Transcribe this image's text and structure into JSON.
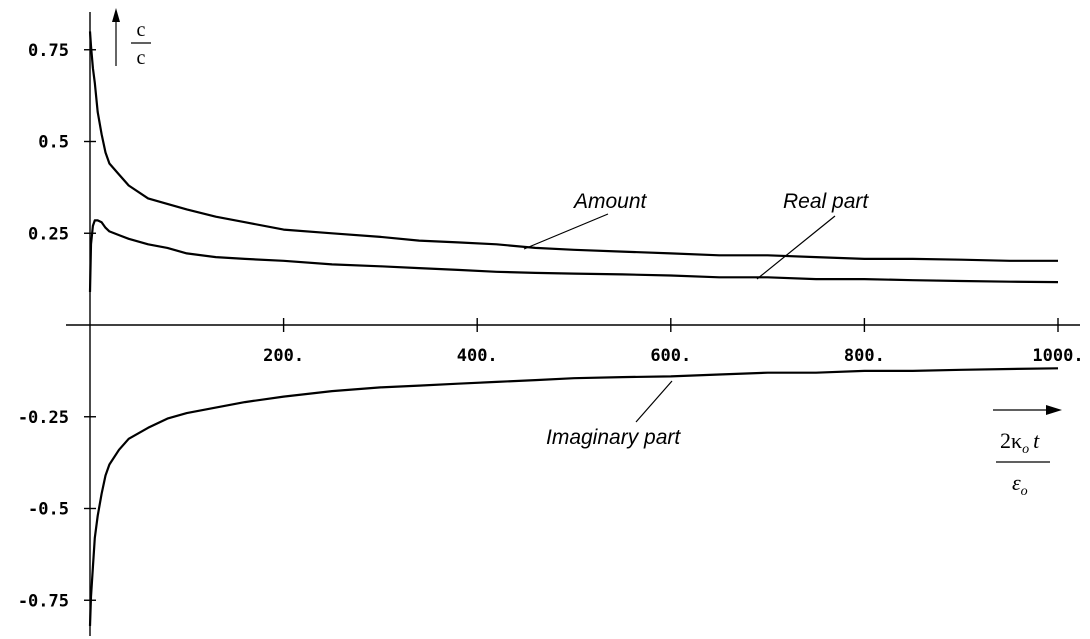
{
  "chart_data": {
    "type": "line",
    "xlim": [
      0,
      1000
    ],
    "ylim": [
      -0.85,
      0.85
    ],
    "x_ticks": [
      {
        "value": 200,
        "label": "200."
      },
      {
        "value": 400,
        "label": "400."
      },
      {
        "value": 600,
        "label": "600."
      },
      {
        "value": 800,
        "label": "800."
      },
      {
        "value": 1000,
        "label": "1000."
      }
    ],
    "y_ticks": [
      {
        "value": 0.75,
        "label": "0.75"
      },
      {
        "value": 0.5,
        "label": "0.5"
      },
      {
        "value": 0.25,
        "label": "0.25"
      },
      {
        "value": -0.25,
        "label": "-0.25"
      },
      {
        "value": -0.5,
        "label": "-0.5"
      },
      {
        "value": -0.75,
        "label": "-0.75"
      }
    ],
    "ylabel": {
      "numerator": "c",
      "denominator": "c"
    },
    "xlabel": {
      "numerator": "2κ",
      "numerator_sub": "o",
      "numerator_var": "t",
      "denominator": "ε",
      "denominator_sub": "o"
    },
    "series": [
      {
        "name": "Amount",
        "x": [
          0,
          1,
          3,
          5,
          8,
          12,
          16,
          20,
          30,
          40,
          60,
          80,
          100,
          130,
          160,
          200,
          250,
          300,
          340,
          380,
          420,
          460,
          500,
          550,
          600,
          650,
          700,
          750,
          800,
          850,
          900,
          950,
          1000
        ],
        "values": [
          0.8,
          0.76,
          0.7,
          0.66,
          0.58,
          0.52,
          0.47,
          0.44,
          0.41,
          0.38,
          0.345,
          0.33,
          0.315,
          0.295,
          0.28,
          0.26,
          0.25,
          0.24,
          0.23,
          0.225,
          0.22,
          0.21,
          0.205,
          0.2,
          0.195,
          0.19,
          0.19,
          0.185,
          0.18,
          0.18,
          0.178,
          0.175,
          0.175
        ]
      },
      {
        "name": "Real part",
        "x": [
          0,
          1,
          3,
          5,
          8,
          12,
          16,
          20,
          30,
          40,
          60,
          80,
          100,
          130,
          160,
          200,
          250,
          300,
          340,
          380,
          420,
          460,
          500,
          550,
          600,
          650,
          700,
          750,
          800,
          850,
          900,
          950,
          1000
        ],
        "values": [
          0.09,
          0.22,
          0.27,
          0.285,
          0.285,
          0.28,
          0.265,
          0.255,
          0.245,
          0.235,
          0.22,
          0.21,
          0.195,
          0.185,
          0.18,
          0.175,
          0.165,
          0.16,
          0.155,
          0.15,
          0.145,
          0.142,
          0.14,
          0.138,
          0.135,
          0.13,
          0.13,
          0.125,
          0.125,
          0.122,
          0.12,
          0.118,
          0.117
        ]
      },
      {
        "name": "Imaginary part",
        "x": [
          0,
          1,
          3,
          5,
          8,
          12,
          16,
          20,
          30,
          40,
          60,
          80,
          100,
          130,
          160,
          200,
          250,
          300,
          340,
          380,
          420,
          460,
          500,
          550,
          600,
          650,
          700,
          750,
          800,
          850,
          900,
          950,
          1000
        ],
        "values": [
          -0.82,
          -0.74,
          -0.66,
          -0.58,
          -0.52,
          -0.46,
          -0.41,
          -0.38,
          -0.34,
          -0.31,
          -0.28,
          -0.255,
          -0.24,
          -0.225,
          -0.21,
          -0.195,
          -0.18,
          -0.17,
          -0.165,
          -0.16,
          -0.155,
          -0.15,
          -0.145,
          -0.142,
          -0.14,
          -0.135,
          -0.13,
          -0.13,
          -0.125,
          -0.125,
          -0.122,
          -0.12,
          -0.118
        ]
      }
    ],
    "annotations": [
      {
        "id": "amount",
        "text": "Amount"
      },
      {
        "id": "real",
        "text": "Real part"
      },
      {
        "id": "imag",
        "text": "Imaginary part"
      }
    ]
  }
}
